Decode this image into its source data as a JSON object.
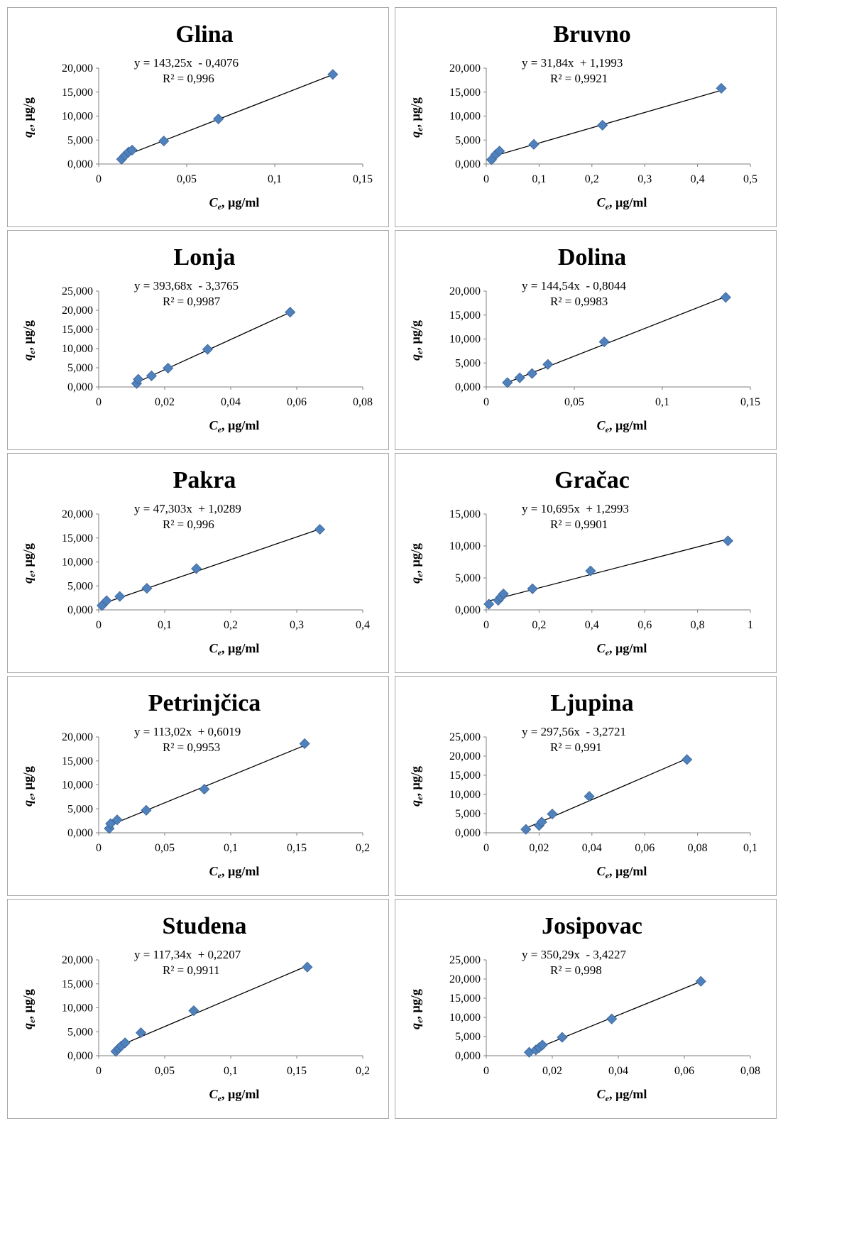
{
  "chart_data": [
    {
      "type": "scatter",
      "title": "Glina",
      "xlabel_sym": "C",
      "xlabel_sub": "e",
      "xlabel_unit": ", µg/ml",
      "ylabel_sym": "q",
      "ylabel_sub": "e",
      "ylabel_unit": ", µg/g",
      "xlim": [
        0,
        0.15
      ],
      "ylim": [
        0,
        20000
      ],
      "xticks": [
        "0",
        "0,05",
        "0,1",
        "0,15"
      ],
      "yticks": [
        "0,000",
        "5,000",
        "10,000",
        "15,000",
        "20,000"
      ],
      "equation": "y = 143,25x  - 0,4076",
      "r2": "R² = 0,996",
      "trendline": {
        "slope": 143.25,
        "intercept": -0.4076
      },
      "series": [
        {
          "x": [
            0.013,
            0.015,
            0.017,
            0.019,
            0.037,
            0.068,
            0.133
          ],
          "y": [
            1000,
            1800,
            2500,
            2900,
            4800,
            9400,
            18700
          ]
        }
      ]
    },
    {
      "type": "scatter",
      "title": "Bruvno",
      "xlabel_sym": "C",
      "xlabel_sub": "e",
      "xlabel_unit": ", µg/ml",
      "ylabel_sym": "q",
      "ylabel_sub": "e",
      "ylabel_unit": ", µg/g",
      "xlim": [
        0,
        0.5
      ],
      "ylim": [
        0,
        20000
      ],
      "xticks": [
        "0",
        "0,1",
        "0,2",
        "0,3",
        "0,4",
        "0,5"
      ],
      "yticks": [
        "0,000",
        "5,000",
        "10,000",
        "15,000",
        "20,000"
      ],
      "equation": "y = 31,84x  + 1,1993",
      "r2": "R² = 0,9921",
      "trendline": {
        "slope": 31.84,
        "intercept": 1.1993
      },
      "series": [
        {
          "x": [
            0.01,
            0.018,
            0.025,
            0.09,
            0.22,
            0.445
          ],
          "y": [
            900,
            2000,
            2700,
            4100,
            8100,
            15800
          ]
        }
      ]
    },
    {
      "type": "scatter",
      "title": "Lonja",
      "xlabel_sym": "C",
      "xlabel_sub": "e",
      "xlabel_unit": ", µg/ml",
      "ylabel_sym": "q",
      "ylabel_sub": "e",
      "ylabel_unit": ", µg/g",
      "xlim": [
        0,
        0.08
      ],
      "ylim": [
        0,
        25000
      ],
      "xticks": [
        "0",
        "0,02",
        "0,04",
        "0,06",
        "0,08"
      ],
      "yticks": [
        "0,000",
        "5,000",
        "10,000",
        "15,000",
        "20,000",
        "25,000"
      ],
      "equation": "y = 393,68x  - 3,3765",
      "r2": "R² = 0,9987",
      "trendline": {
        "slope": 393.68,
        "intercept": -3.3765
      },
      "series": [
        {
          "x": [
            0.0115,
            0.012,
            0.016,
            0.021,
            0.033,
            0.058
          ],
          "y": [
            900,
            2000,
            2900,
            4900,
            9800,
            19500
          ]
        }
      ]
    },
    {
      "type": "scatter",
      "title": "Dolina",
      "xlabel_sym": "C",
      "xlabel_sub": "e",
      "xlabel_unit": ", µg/ml",
      "ylabel_sym": "q",
      "ylabel_sub": "e",
      "ylabel_unit": ", µg/g",
      "xlim": [
        0,
        0.15
      ],
      "ylim": [
        0,
        20000
      ],
      "xticks": [
        "0",
        "0,05",
        "0,1",
        "0,15"
      ],
      "yticks": [
        "0,000",
        "5,000",
        "10,000",
        "15,000",
        "20,000"
      ],
      "equation": "y = 144,54x  - 0,8044",
      "r2": "R² = 0,9983",
      "trendline": {
        "slope": 144.54,
        "intercept": -0.8044
      },
      "series": [
        {
          "x": [
            0.012,
            0.019,
            0.026,
            0.035,
            0.067,
            0.136
          ],
          "y": [
            900,
            1900,
            2800,
            4700,
            9400,
            18700
          ]
        }
      ]
    },
    {
      "type": "scatter",
      "title": "Pakra",
      "xlabel_sym": "C",
      "xlabel_sub": "e",
      "xlabel_unit": ", µg/ml",
      "ylabel_sym": "q",
      "ylabel_sub": "e",
      "ylabel_unit": ", µg/g",
      "xlim": [
        0,
        0.4
      ],
      "ylim": [
        0,
        20000
      ],
      "xticks": [
        "0",
        "0,1",
        "0,2",
        "0,3",
        "0,4"
      ],
      "yticks": [
        "0,000",
        "5,000",
        "10,000",
        "15,000",
        "20,000"
      ],
      "equation": "y = 47,303x  + 1,0289",
      "r2": "R² = 0,996",
      "trendline": {
        "slope": 47.303,
        "intercept": 1.0289
      },
      "series": [
        {
          "x": [
            0.005,
            0.012,
            0.032,
            0.073,
            0.148,
            0.335
          ],
          "y": [
            900,
            1900,
            2800,
            4500,
            8600,
            16800
          ]
        }
      ]
    },
    {
      "type": "scatter",
      "title": "Gračac",
      "xlabel_sym": "C",
      "xlabel_sub": "e",
      "xlabel_unit": ", µg/ml",
      "ylabel_sym": "q",
      "ylabel_sub": "e",
      "ylabel_unit": ", µg/g",
      "xlim": [
        0,
        1
      ],
      "ylim": [
        0,
        15000
      ],
      "xticks": [
        "0",
        "0,2",
        "0,4",
        "0,6",
        "0,8",
        "1"
      ],
      "yticks": [
        "0,000",
        "5,000",
        "10,000",
        "15,000"
      ],
      "equation": "y = 10,695x  + 1,2993",
      "r2": "R² = 0,9901",
      "trendline": {
        "slope": 10.695,
        "intercept": 1.2993
      },
      "series": [
        {
          "x": [
            0.01,
            0.045,
            0.055,
            0.065,
            0.175,
            0.395,
            0.915
          ],
          "y": [
            900,
            1500,
            2000,
            2500,
            3300,
            6100,
            10800
          ]
        }
      ]
    },
    {
      "type": "scatter",
      "title": "Petrinjčica",
      "xlabel_sym": "C",
      "xlabel_sub": "e",
      "xlabel_unit": ", µg/ml",
      "ylabel_sym": "q",
      "ylabel_sub": "e",
      "ylabel_unit": ", µg/g",
      "xlim": [
        0,
        0.2
      ],
      "ylim": [
        0,
        20000
      ],
      "xticks": [
        "0",
        "0,05",
        "0,1",
        "0,15",
        "0,2"
      ],
      "yticks": [
        "0,000",
        "5,000",
        "10,000",
        "15,000",
        "20,000"
      ],
      "equation": "y = 113,02x  + 0,6019",
      "r2": "R² = 0,9953",
      "trendline": {
        "slope": 113.02,
        "intercept": 0.6019
      },
      "series": [
        {
          "x": [
            0.008,
            0.009,
            0.014,
            0.036,
            0.08,
            0.156
          ],
          "y": [
            900,
            1900,
            2700,
            4700,
            9100,
            18600
          ]
        }
      ]
    },
    {
      "type": "scatter",
      "title": "Ljupina",
      "xlabel_sym": "C",
      "xlabel_sub": "e",
      "xlabel_unit": ", µg/ml",
      "ylabel_sym": "q",
      "ylabel_sub": "e",
      "ylabel_unit": ", µg/g",
      "xlim": [
        0,
        0.1
      ],
      "ylim": [
        0,
        25000
      ],
      "xticks": [
        "0",
        "0,02",
        "0,04",
        "0,06",
        "0,08",
        "0,1"
      ],
      "yticks": [
        "0,000",
        "5,000",
        "10,000",
        "15,000",
        "20,000",
        "25,000"
      ],
      "equation": "y = 297,56x  - 3,2721",
      "r2": "R² = 0,991",
      "trendline": {
        "slope": 297.56,
        "intercept": -3.2721
      },
      "series": [
        {
          "x": [
            0.015,
            0.02,
            0.021,
            0.025,
            0.039,
            0.076
          ],
          "y": [
            900,
            1900,
            2800,
            4900,
            9500,
            19100
          ]
        }
      ]
    },
    {
      "type": "scatter",
      "title": "Studena",
      "xlabel_sym": "C",
      "xlabel_sub": "e",
      "xlabel_unit": ", µg/ml",
      "ylabel_sym": "q",
      "ylabel_sub": "e",
      "ylabel_unit": ", µg/g",
      "xlim": [
        0,
        0.2
      ],
      "ylim": [
        0,
        20000
      ],
      "xticks": [
        "0",
        "0,05",
        "0,1",
        "0,15",
        "0,2"
      ],
      "yticks": [
        "0,000",
        "5,000",
        "10,000",
        "15,000",
        "20,000"
      ],
      "equation": "y = 117,34x  + 0,2207",
      "r2": "R² = 0,9911",
      "trendline": {
        "slope": 117.34,
        "intercept": 0.2207
      },
      "series": [
        {
          "x": [
            0.013,
            0.015,
            0.017,
            0.02,
            0.032,
            0.072,
            0.158
          ],
          "y": [
            900,
            1500,
            2000,
            2700,
            4800,
            9400,
            18500
          ]
        }
      ]
    },
    {
      "type": "scatter",
      "title": "Josipovac",
      "xlabel_sym": "C",
      "xlabel_sub": "e",
      "xlabel_unit": ", µg/ml",
      "ylabel_sym": "q",
      "ylabel_sub": "e",
      "ylabel_unit": ", µg/g",
      "xlim": [
        0,
        0.08
      ],
      "ylim": [
        0,
        25000
      ],
      "xticks": [
        "0",
        "0,02",
        "0,04",
        "0,06",
        "0,08"
      ],
      "yticks": [
        "0,000",
        "5,000",
        "10,000",
        "15,000",
        "20,000",
        "25,000"
      ],
      "equation": "y = 350,29x  - 3,4227",
      "r2": "R² = 0,998",
      "trendline": {
        "slope": 350.29,
        "intercept": -3.4227
      },
      "series": [
        {
          "x": [
            0.013,
            0.015,
            0.016,
            0.017,
            0.023,
            0.038,
            0.065
          ],
          "y": [
            900,
            1500,
            2100,
            2800,
            4800,
            9600,
            19400
          ]
        }
      ]
    }
  ],
  "style": {
    "marker_color": "#4f81bd",
    "marker_stroke": "#3a6397",
    "trendline_color": "#000000",
    "panel_border": "#a6a6a6"
  }
}
